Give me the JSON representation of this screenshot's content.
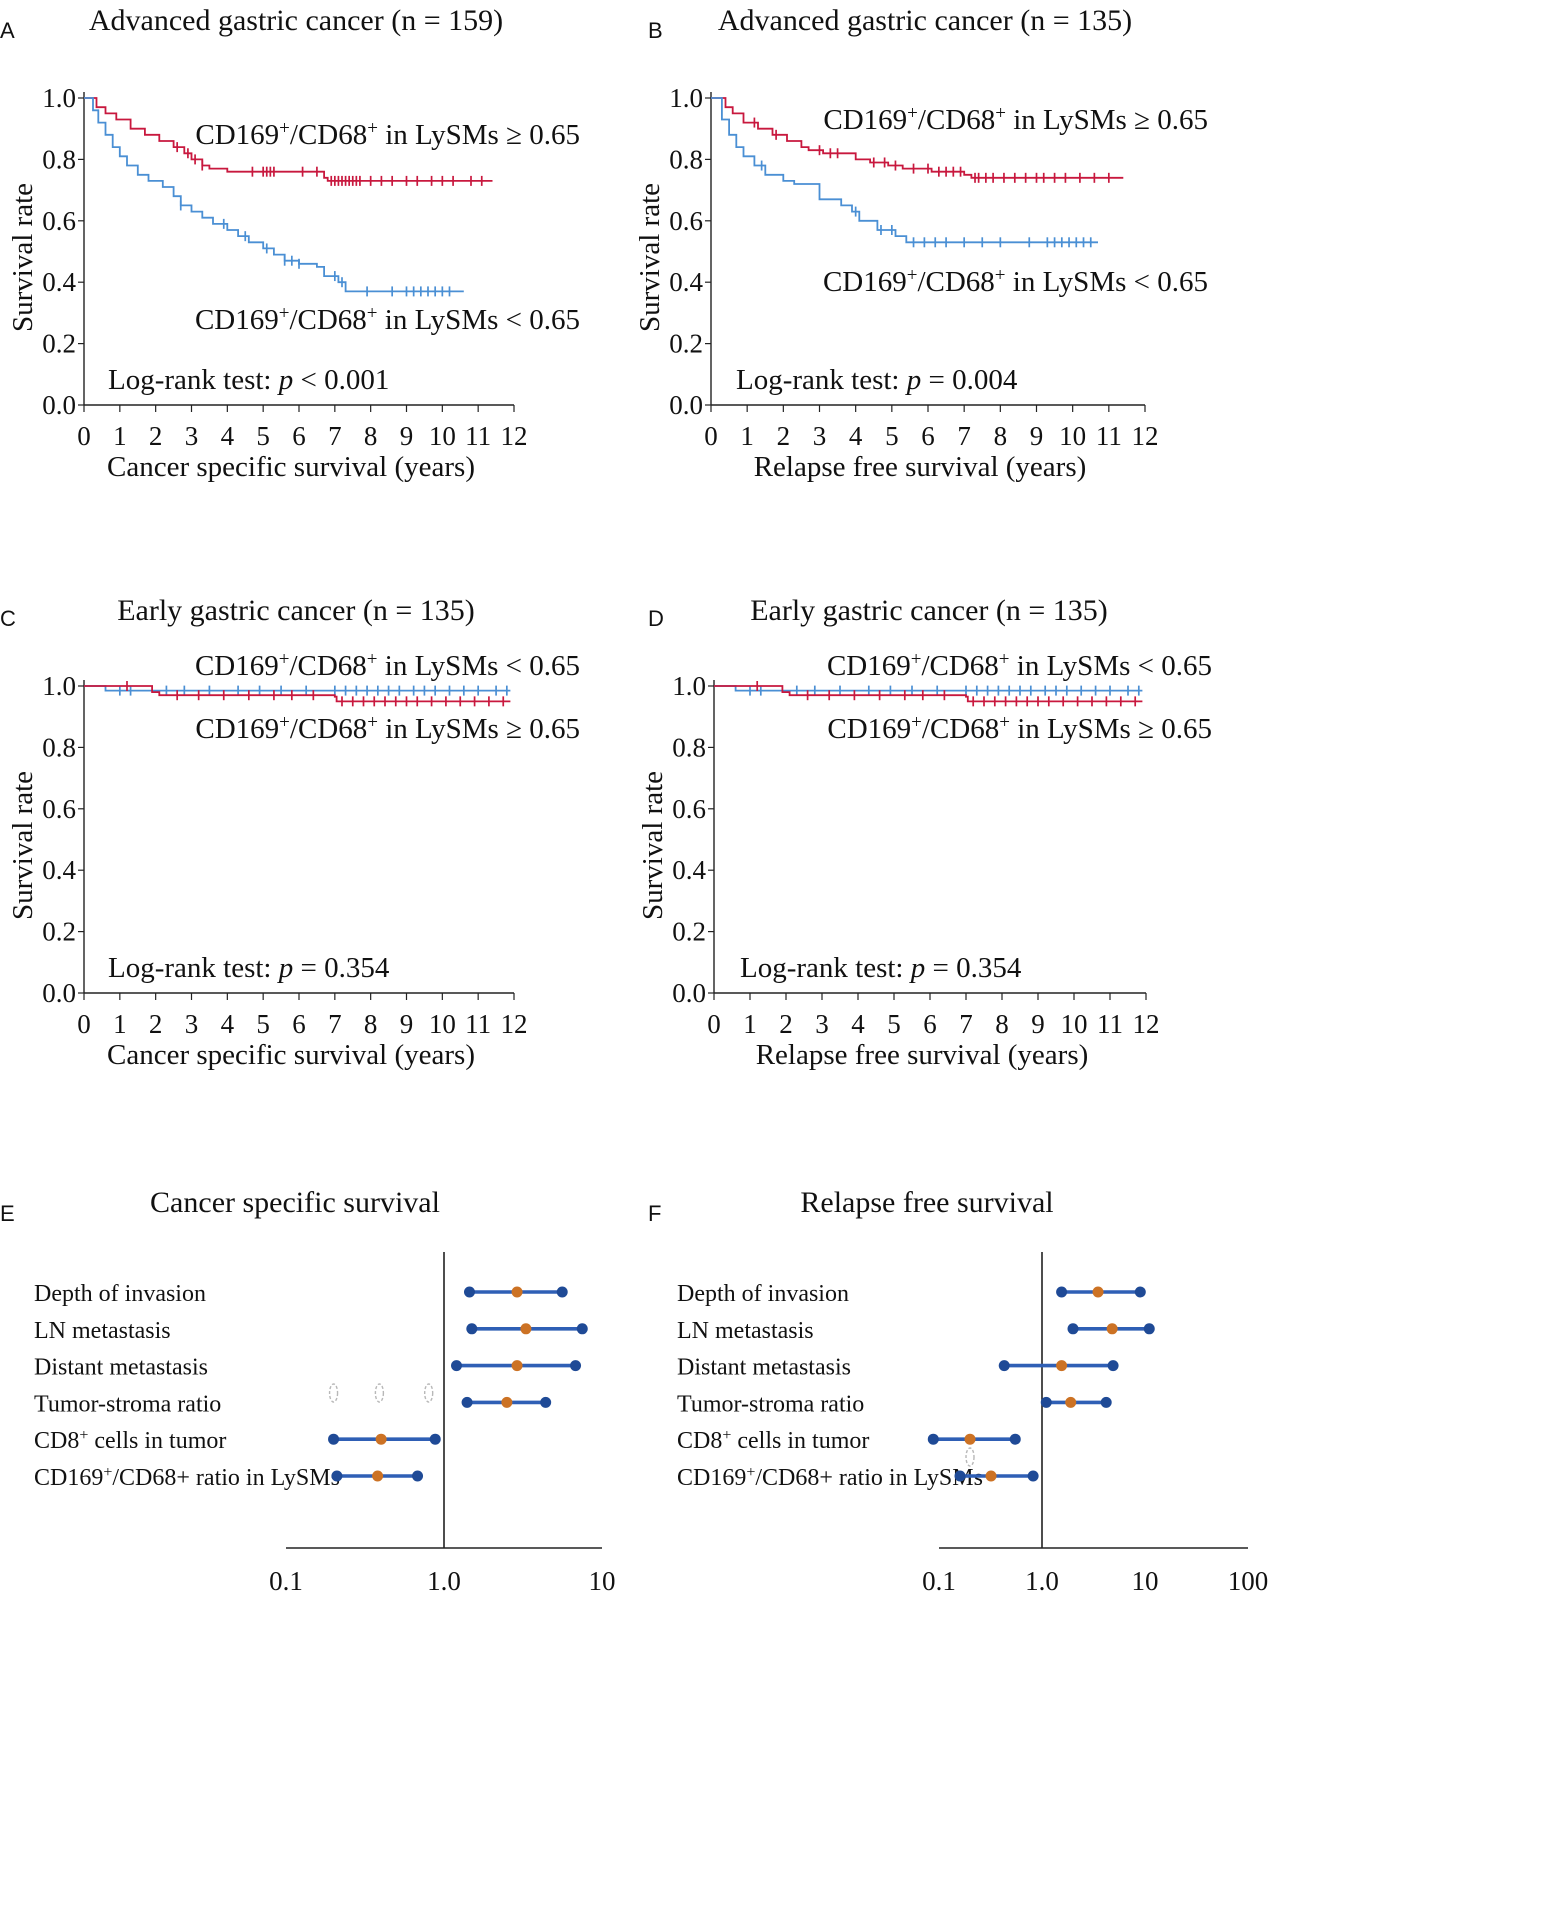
{
  "figure": {
    "panels": [
      "A",
      "B",
      "C",
      "D",
      "E",
      "F"
    ]
  },
  "colors": {
    "high_ratio": "#c8183e",
    "low_ratio": "#4a8fd4",
    "forest_line": "#2f5fb5",
    "forest_end": "#1f4a96",
    "forest_point": "#cc7224",
    "axis": "#222222"
  },
  "chart_data": [
    {
      "panel": "A",
      "type": "line",
      "subtype": "kaplan-meier",
      "title": "Advanced gastric cancer (n = 159)",
      "xlabel": "Cancer specific survival (years)",
      "ylabel": "Survival rate",
      "xlim": [
        0,
        12
      ],
      "ylim": [
        0,
        1
      ],
      "xticks": [
        "0",
        "1",
        "2",
        "3",
        "4",
        "5",
        "6",
        "7",
        "8",
        "9",
        "10",
        "11",
        "12"
      ],
      "yticks": [
        "0.0",
        "0.2",
        "0.4",
        "0.6",
        "0.8",
        "1.0"
      ],
      "stat": {
        "prefix": "Log-rank test: ",
        "p": "p",
        "value": " < 0.001"
      },
      "series": [
        {
          "name": "CD169+/CD68+ in LySMs ≥ 0.65",
          "label_main": "CD169",
          "sup1": "+",
          "label_mid": "/CD68",
          "sup2": "+",
          "label_end": " in LySMs ≥ 0.65",
          "label_pos": "upper",
          "color_key": "high_ratio",
          "steps": [
            [
              0,
              1.0
            ],
            [
              0.35,
              0.97
            ],
            [
              0.6,
              0.95
            ],
            [
              0.9,
              0.93
            ],
            [
              1.3,
              0.9
            ],
            [
              1.7,
              0.88
            ],
            [
              2.1,
              0.86
            ],
            [
              2.5,
              0.84
            ],
            [
              2.8,
              0.82
            ],
            [
              3.0,
              0.8
            ],
            [
              3.3,
              0.78
            ],
            [
              3.5,
              0.77
            ],
            [
              4.0,
              0.76
            ],
            [
              6.7,
              0.74
            ],
            [
              6.8,
              0.73
            ],
            [
              11.4,
              0.73
            ]
          ],
          "censors": [
            2.6,
            2.9,
            3.1,
            3.3,
            4.7,
            5.0,
            5.1,
            5.2,
            5.3,
            6.1,
            6.5,
            6.9,
            7.0,
            7.1,
            7.2,
            7.3,
            7.4,
            7.5,
            7.6,
            7.7,
            8.0,
            8.3,
            8.6,
            9.0,
            9.3,
            9.7,
            10.0,
            10.3,
            10.8,
            11.1
          ]
        },
        {
          "name": "CD169+/CD68+ in LySMs < 0.65",
          "label_main": "CD169",
          "sup1": "+",
          "label_mid": "/CD68",
          "sup2": "+",
          "label_end": " in LySMs < 0.65",
          "label_pos": "lower",
          "color_key": "low_ratio",
          "steps": [
            [
              0,
              1.0
            ],
            [
              0.25,
              0.96
            ],
            [
              0.4,
              0.92
            ],
            [
              0.6,
              0.88
            ],
            [
              0.8,
              0.84
            ],
            [
              1.0,
              0.81
            ],
            [
              1.2,
              0.78
            ],
            [
              1.5,
              0.75
            ],
            [
              1.8,
              0.73
            ],
            [
              2.2,
              0.71
            ],
            [
              2.5,
              0.68
            ],
            [
              2.7,
              0.65
            ],
            [
              3.0,
              0.63
            ],
            [
              3.3,
              0.61
            ],
            [
              3.6,
              0.59
            ],
            [
              4.0,
              0.57
            ],
            [
              4.3,
              0.55
            ],
            [
              4.6,
              0.53
            ],
            [
              5.0,
              0.51
            ],
            [
              5.3,
              0.49
            ],
            [
              5.6,
              0.47
            ],
            [
              6.0,
              0.46
            ],
            [
              6.5,
              0.45
            ],
            [
              6.7,
              0.42
            ],
            [
              7.1,
              0.4
            ],
            [
              7.3,
              0.37
            ],
            [
              10.6,
              0.37
            ]
          ],
          "censors": [
            2.7,
            3.9,
            4.5,
            5.1,
            5.6,
            5.8,
            6.0,
            7.0,
            7.2,
            7.9,
            8.6,
            9.0,
            9.2,
            9.4,
            9.6,
            9.8,
            10.0,
            10.2
          ]
        }
      ]
    },
    {
      "panel": "B",
      "type": "line",
      "subtype": "kaplan-meier",
      "title": "Advanced gastric cancer (n = 135)",
      "xlabel": "Relapse free survival (years)",
      "ylabel": "Survival rate",
      "xlim": [
        0,
        12
      ],
      "ylim": [
        0,
        1
      ],
      "xticks": [
        "0",
        "1",
        "2",
        "3",
        "4",
        "5",
        "6",
        "7",
        "8",
        "9",
        "10",
        "11",
        "12"
      ],
      "yticks": [
        "0.0",
        "0.2",
        "0.4",
        "0.6",
        "0.8",
        "1.0"
      ],
      "stat": {
        "prefix": "Log-rank test: ",
        "p": "p",
        "value": " = 0.004"
      },
      "series": [
        {
          "name": "CD169+/CD68+ in LySMs ≥ 0.65",
          "label_main": "CD169",
          "sup1": "+",
          "label_mid": "/CD68",
          "sup2": "+",
          "label_end": " in LySMs ≥ 0.65",
          "label_pos": "upper",
          "color_key": "high_ratio",
          "steps": [
            [
              0,
              1.0
            ],
            [
              0.4,
              0.97
            ],
            [
              0.6,
              0.95
            ],
            [
              0.9,
              0.92
            ],
            [
              1.3,
              0.9
            ],
            [
              1.7,
              0.88
            ],
            [
              2.1,
              0.86
            ],
            [
              2.5,
              0.84
            ],
            [
              2.7,
              0.83
            ],
            [
              3.1,
              0.82
            ],
            [
              4.0,
              0.8
            ],
            [
              4.4,
              0.79
            ],
            [
              4.9,
              0.78
            ],
            [
              5.3,
              0.77
            ],
            [
              6.1,
              0.76
            ],
            [
              7.0,
              0.75
            ],
            [
              7.2,
              0.74
            ],
            [
              11.4,
              0.74
            ]
          ],
          "censors": [
            1.2,
            1.8,
            3.0,
            3.3,
            3.5,
            4.5,
            4.8,
            5.1,
            5.6,
            6.0,
            6.3,
            6.5,
            6.7,
            6.9,
            7.3,
            7.4,
            7.6,
            7.8,
            8.1,
            8.4,
            8.7,
            9.0,
            9.2,
            9.5,
            9.8,
            10.2,
            10.6,
            11.0
          ]
        },
        {
          "name": "CD169+/CD68+ in LySMs < 0.65",
          "label_main": "CD169",
          "sup1": "+",
          "label_mid": "/CD68",
          "sup2": "+",
          "label_end": " in LySMs < 0.65",
          "label_pos": "lower",
          "color_key": "low_ratio",
          "steps": [
            [
              0,
              1.0
            ],
            [
              0.3,
              0.93
            ],
            [
              0.5,
              0.88
            ],
            [
              0.7,
              0.84
            ],
            [
              0.9,
              0.81
            ],
            [
              1.2,
              0.78
            ],
            [
              1.5,
              0.75
            ],
            [
              2.0,
              0.73
            ],
            [
              2.3,
              0.72
            ],
            [
              3.0,
              0.67
            ],
            [
              3.6,
              0.65
            ],
            [
              3.9,
              0.63
            ],
            [
              4.1,
              0.6
            ],
            [
              4.6,
              0.57
            ],
            [
              5.1,
              0.55
            ],
            [
              5.4,
              0.53
            ],
            [
              10.7,
              0.53
            ]
          ],
          "censors": [
            1.4,
            4.0,
            4.7,
            5.0,
            5.6,
            5.9,
            6.2,
            6.5,
            7.0,
            7.5,
            8.0,
            8.8,
            9.3,
            9.5,
            9.7,
            9.9,
            10.1,
            10.3,
            10.5
          ]
        }
      ]
    },
    {
      "panel": "C",
      "type": "line",
      "subtype": "kaplan-meier",
      "title": "Early gastric cancer (n = 135)",
      "xlabel": "Cancer specific survival (years)",
      "ylabel": "Survival rate",
      "xlim": [
        0,
        12
      ],
      "ylim": [
        0,
        1
      ],
      "xticks": [
        "0",
        "1",
        "2",
        "3",
        "4",
        "5",
        "6",
        "7",
        "8",
        "9",
        "10",
        "11",
        "12"
      ],
      "yticks": [
        "0.0",
        "0.2",
        "0.4",
        "0.6",
        "0.8",
        "1.0"
      ],
      "stat": {
        "prefix": "Log-rank test: ",
        "p": "p",
        "value": " = 0.354"
      },
      "series": [
        {
          "name": "CD169+/CD68+ in LySMs < 0.65",
          "label_main": "CD169",
          "sup1": "+",
          "label_mid": "/CD68",
          "sup2": "+",
          "label_end": " in LySMs < 0.65",
          "label_pos": "top",
          "color_key": "low_ratio",
          "steps": [
            [
              0,
              1.0
            ],
            [
              0.6,
              0.985
            ],
            [
              11.9,
              0.985
            ]
          ],
          "censors": [
            1.0,
            1.3,
            2.3,
            2.8,
            3.5,
            4.3,
            4.9,
            5.5,
            6.2,
            7.0,
            7.3,
            7.6,
            7.9,
            8.2,
            8.5,
            8.8,
            9.2,
            9.5,
            9.8,
            10.2,
            10.6,
            11.0,
            11.5,
            11.8
          ]
        },
        {
          "name": "CD169+/CD68+ in LySMs ≥ 0.65",
          "label_main": "CD169",
          "sup1": "+",
          "label_mid": "/CD68",
          "sup2": "+",
          "label_end": " in LySMs ≥ 0.65",
          "label_pos": "below",
          "color_key": "high_ratio",
          "steps": [
            [
              0,
              1.0
            ],
            [
              1.9,
              0.98
            ],
            [
              2.1,
              0.97
            ],
            [
              7.0,
              0.965
            ],
            [
              7.05,
              0.95
            ],
            [
              11.9,
              0.95
            ]
          ],
          "censors": [
            1.2,
            2.6,
            3.2,
            3.9,
            4.6,
            5.3,
            5.8,
            6.4,
            7.2,
            7.5,
            7.8,
            8.1,
            8.4,
            8.7,
            9.0,
            9.3,
            9.7,
            10.1,
            10.5,
            10.9,
            11.3,
            11.7
          ]
        }
      ]
    },
    {
      "panel": "D",
      "type": "line",
      "subtype": "kaplan-meier",
      "title": "Early gastric cancer (n = 135)",
      "xlabel": "Relapse free survival (years)",
      "ylabel": "Survival rate",
      "xlim": [
        0,
        12
      ],
      "ylim": [
        0,
        1
      ],
      "xticks": [
        "0",
        "1",
        "2",
        "3",
        "4",
        "5",
        "6",
        "7",
        "8",
        "9",
        "10",
        "11",
        "12"
      ],
      "yticks": [
        "0.0",
        "0.2",
        "0.4",
        "0.6",
        "0.8",
        "1.0"
      ],
      "stat": {
        "prefix": "Log-rank test: ",
        "p": "p",
        "value": " = 0.354"
      },
      "series": [
        {
          "name": "CD169+/CD68+ in LySMs < 0.65",
          "label_main": "CD169",
          "sup1": "+",
          "label_mid": "/CD68",
          "sup2": "+",
          "label_end": " in LySMs < 0.65",
          "label_pos": "top",
          "color_key": "low_ratio",
          "steps": [
            [
              0,
              1.0
            ],
            [
              0.6,
              0.985
            ],
            [
              11.9,
              0.985
            ]
          ],
          "censors": [
            1.0,
            1.3,
            2.3,
            2.8,
            3.5,
            4.3,
            4.9,
            5.5,
            6.2,
            7.0,
            7.3,
            7.6,
            7.9,
            8.2,
            8.5,
            8.8,
            9.2,
            9.5,
            9.8,
            10.2,
            10.6,
            11.0,
            11.5,
            11.8
          ]
        },
        {
          "name": "CD169+/CD68+ in LySMs ≥ 0.65",
          "label_main": "CD169",
          "sup1": "+",
          "label_mid": "/CD68",
          "sup2": "+",
          "label_end": " in LySMs ≥ 0.65",
          "label_pos": "below",
          "color_key": "high_ratio",
          "steps": [
            [
              0,
              1.0
            ],
            [
              1.9,
              0.98
            ],
            [
              2.1,
              0.97
            ],
            [
              7.0,
              0.965
            ],
            [
              7.05,
              0.95
            ],
            [
              11.9,
              0.95
            ]
          ],
          "censors": [
            1.2,
            2.6,
            3.2,
            3.9,
            4.6,
            5.3,
            5.8,
            6.4,
            7.2,
            7.5,
            7.8,
            8.1,
            8.4,
            8.7,
            9.0,
            9.3,
            9.7,
            10.1,
            10.5,
            10.9,
            11.3,
            11.7
          ]
        }
      ]
    },
    {
      "panel": "E",
      "type": "scatter",
      "subtype": "forest",
      "title": "Cancer specific survival",
      "xscale": "log",
      "xlim": [
        0.1,
        10
      ],
      "xticks": [
        {
          "value": 0.1,
          "label": "0.1"
        },
        {
          "value": 1.0,
          "label": "1.0"
        },
        {
          "value": 10,
          "label": "10"
        }
      ],
      "reference": 1.0,
      "rows": [
        {
          "label": "Depth of invasion",
          "sup": "",
          "label_rest": "",
          "lower": 1.45,
          "estimate": 2.9,
          "upper": 5.6
        },
        {
          "label": "LN metastasis",
          "sup": "",
          "label_rest": "",
          "lower": 1.5,
          "estimate": 3.3,
          "upper": 7.5
        },
        {
          "label": "Distant metastasis",
          "sup": "",
          "label_rest": "",
          "lower": 1.2,
          "estimate": 2.9,
          "upper": 6.8
        },
        {
          "label": "Tumor-stroma ratio",
          "sup": "",
          "label_rest": "",
          "lower": 1.4,
          "estimate": 2.5,
          "upper": 4.4
        },
        {
          "label": "CD8",
          "sup": "+",
          "label_rest": " cells in tumor",
          "lower": 0.2,
          "estimate": 0.4,
          "upper": 0.88
        },
        {
          "label": "CD169",
          "sup": "+",
          "label_rest": "/CD68+ ratio in LySMs",
          "lower": 0.21,
          "estimate": 0.38,
          "upper": 0.68
        }
      ],
      "faint_markers": [
        0.2,
        0.39,
        0.8
      ]
    },
    {
      "panel": "F",
      "type": "scatter",
      "subtype": "forest",
      "title": "Relapse free survival",
      "xscale": "log",
      "xlim": [
        0.1,
        100
      ],
      "xticks": [
        {
          "value": 0.1,
          "label": "0.1"
        },
        {
          "value": 1.0,
          "label": "1.0"
        },
        {
          "value": 10,
          "label": "10"
        },
        {
          "value": 100,
          "label": "100"
        }
      ],
      "reference": 1.0,
      "rows": [
        {
          "label": "Depth of invasion",
          "sup": "",
          "label_rest": "",
          "lower": 1.55,
          "estimate": 3.5,
          "upper": 9.0
        },
        {
          "label": "LN metastasis",
          "sup": "",
          "label_rest": "",
          "lower": 2.0,
          "estimate": 4.8,
          "upper": 11.0
        },
        {
          "label": "Distant metastasis",
          "sup": "",
          "label_rest": "",
          "lower": 0.43,
          "estimate": 1.55,
          "upper": 4.9
        },
        {
          "label": "Tumor-stroma ratio",
          "sup": "",
          "label_rest": "",
          "lower": 1.1,
          "estimate": 1.9,
          "upper": 4.2
        },
        {
          "label": "CD8",
          "sup": "+",
          "label_rest": " cells in tumor",
          "lower": 0.088,
          "estimate": 0.2,
          "upper": 0.55
        },
        {
          "label": "CD169",
          "sup": "+",
          "label_rest": "/CD68+ ratio in LySMs",
          "lower": 0.16,
          "estimate": 0.32,
          "upper": 0.82
        }
      ],
      "faint_markers": [
        0.2
      ]
    }
  ]
}
